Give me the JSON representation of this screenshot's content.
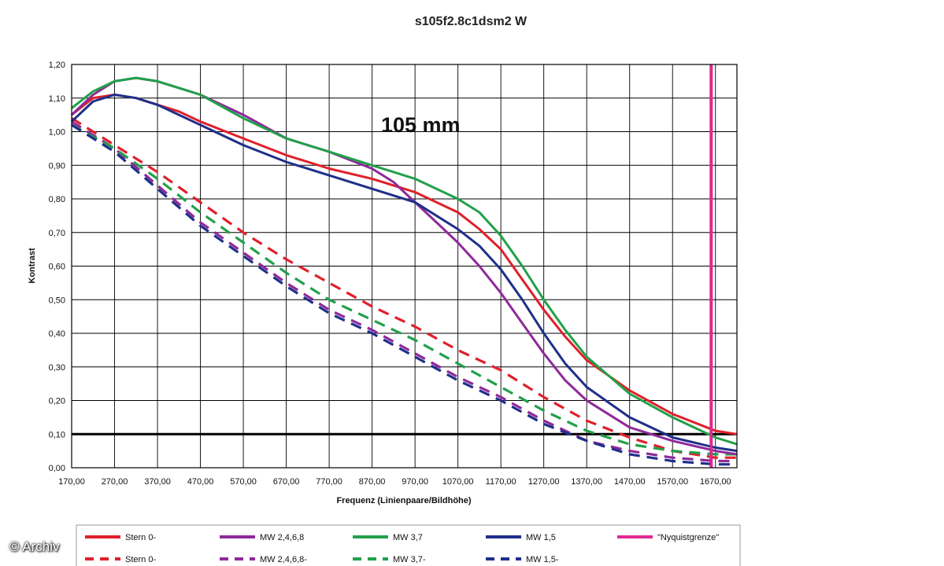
{
  "credit": "© Archiv",
  "chart_data": {
    "type": "line",
    "title": "s105f2.8c1dsm2 W",
    "annotation": "105 mm",
    "xlabel": "Frequenz (Linienpaare/Bildhöhe)",
    "ylabel": "Kontrast",
    "xlim": [
      170,
      1720
    ],
    "ylim": [
      0,
      1.2
    ],
    "x_ticks": [
      "170,00",
      "270,00",
      "370,00",
      "470,00",
      "570,00",
      "670,00",
      "770,00",
      "870,00",
      "970,00",
      "1070,00",
      "1170,00",
      "1270,00",
      "1370,00",
      "1470,00",
      "1570,00",
      "1670,00"
    ],
    "y_ticks": [
      "0,00",
      "0,10",
      "0,20",
      "0,30",
      "0,40",
      "0,50",
      "0,60",
      "0,70",
      "0,80",
      "0,90",
      "1,00",
      "1,10",
      "1,20"
    ],
    "grid": true,
    "legend_position": "bottom",
    "colors": {
      "red": "#e0202a",
      "purple": "#8e2a9a",
      "green": "#22a04a",
      "blue": "#1f2f8a",
      "magenta": "#e02890",
      "black": "#000000"
    },
    "reference_lines": [
      {
        "orientation": "horizontal",
        "y": 0.1,
        "color": "#000000"
      },
      {
        "orientation": "vertical",
        "x": 1660,
        "color": "#e02890"
      }
    ],
    "series": [
      {
        "name": "Stern 0-",
        "color": "#e0202a",
        "style": "solid",
        "x": [
          170,
          220,
          270,
          320,
          370,
          420,
          470,
          570,
          670,
          770,
          870,
          970,
          1070,
          1120,
          1170,
          1220,
          1270,
          1320,
          1370,
          1470,
          1570,
          1670,
          1720
        ],
        "y": [
          1.05,
          1.1,
          1.11,
          1.1,
          1.08,
          1.06,
          1.03,
          0.98,
          0.93,
          0.89,
          0.86,
          0.82,
          0.76,
          0.71,
          0.65,
          0.56,
          0.47,
          0.39,
          0.32,
          0.23,
          0.16,
          0.11,
          0.1
        ]
      },
      {
        "name": "MW 2,4,6,8",
        "color": "#8e2a9a",
        "style": "solid",
        "x": [
          170,
          220,
          270,
          320,
          370,
          420,
          470,
          570,
          670,
          770,
          870,
          920,
          970,
          1020,
          1070,
          1120,
          1170,
          1220,
          1270,
          1320,
          1370,
          1470,
          1570,
          1670,
          1720
        ],
        "y": [
          1.05,
          1.11,
          1.15,
          1.16,
          1.15,
          1.13,
          1.11,
          1.05,
          0.98,
          0.94,
          0.89,
          0.85,
          0.79,
          0.73,
          0.67,
          0.6,
          0.52,
          0.43,
          0.34,
          0.26,
          0.2,
          0.12,
          0.08,
          0.05,
          0.04
        ]
      },
      {
        "name": "MW 3,7",
        "color": "#22a04a",
        "style": "solid",
        "x": [
          170,
          220,
          270,
          320,
          370,
          420,
          470,
          570,
          670,
          770,
          870,
          970,
          1070,
          1120,
          1170,
          1220,
          1270,
          1320,
          1370,
          1470,
          1570,
          1670,
          1720
        ],
        "y": [
          1.07,
          1.12,
          1.15,
          1.16,
          1.15,
          1.13,
          1.11,
          1.04,
          0.98,
          0.94,
          0.9,
          0.86,
          0.8,
          0.76,
          0.69,
          0.6,
          0.5,
          0.41,
          0.33,
          0.22,
          0.15,
          0.09,
          0.07
        ]
      },
      {
        "name": "MW 1,5",
        "color": "#1f2f8a",
        "style": "solid",
        "x": [
          170,
          220,
          270,
          320,
          370,
          420,
          470,
          570,
          670,
          770,
          870,
          970,
          1070,
          1120,
          1170,
          1220,
          1270,
          1320,
          1370,
          1470,
          1570,
          1670,
          1720
        ],
        "y": [
          1.03,
          1.09,
          1.11,
          1.1,
          1.08,
          1.05,
          1.02,
          0.96,
          0.91,
          0.87,
          0.83,
          0.79,
          0.71,
          0.66,
          0.59,
          0.5,
          0.4,
          0.31,
          0.24,
          0.15,
          0.09,
          0.06,
          0.05
        ]
      },
      {
        "name": "\"Nyquistgrenze\"",
        "color": "#e02890",
        "style": "solid",
        "x": [
          1660,
          1660
        ],
        "y": [
          0,
          1.2
        ]
      },
      {
        "name": "Stern 0-",
        "color": "#e0202a",
        "style": "dashed",
        "x": [
          170,
          270,
          370,
          470,
          570,
          670,
          770,
          870,
          970,
          1070,
          1170,
          1270,
          1370,
          1470,
          1570,
          1670,
          1720
        ],
        "y": [
          1.04,
          0.96,
          0.88,
          0.79,
          0.7,
          0.62,
          0.55,
          0.48,
          0.42,
          0.35,
          0.29,
          0.21,
          0.14,
          0.09,
          0.05,
          0.03,
          0.03
        ]
      },
      {
        "name": "MW 2,4,6,8-",
        "color": "#8e2a9a",
        "style": "dashed",
        "x": [
          170,
          270,
          370,
          470,
          570,
          670,
          770,
          870,
          970,
          1070,
          1170,
          1270,
          1370,
          1470,
          1570,
          1670,
          1720
        ],
        "y": [
          1.03,
          0.95,
          0.84,
          0.73,
          0.64,
          0.55,
          0.47,
          0.41,
          0.34,
          0.27,
          0.21,
          0.14,
          0.08,
          0.05,
          0.03,
          0.02,
          0.02
        ]
      },
      {
        "name": "MW 3,7-",
        "color": "#22a04a",
        "style": "dashed",
        "x": [
          170,
          270,
          370,
          470,
          570,
          670,
          770,
          870,
          970,
          1070,
          1170,
          1270,
          1370,
          1470,
          1570,
          1670,
          1720
        ],
        "y": [
          1.02,
          0.95,
          0.86,
          0.76,
          0.67,
          0.58,
          0.5,
          0.44,
          0.38,
          0.31,
          0.24,
          0.17,
          0.11,
          0.07,
          0.05,
          0.04,
          0.04
        ]
      },
      {
        "name": "MW 1,5-",
        "color": "#1f2f8a",
        "style": "dashed",
        "x": [
          170,
          270,
          370,
          470,
          570,
          670,
          770,
          870,
          970,
          1070,
          1170,
          1270,
          1370,
          1470,
          1570,
          1670,
          1720
        ],
        "y": [
          1.02,
          0.94,
          0.83,
          0.72,
          0.63,
          0.54,
          0.46,
          0.4,
          0.33,
          0.26,
          0.2,
          0.13,
          0.08,
          0.04,
          0.02,
          0.01,
          0.01
        ]
      }
    ],
    "legend": {
      "rows": [
        [
          {
            "label": "Stern 0-",
            "color": "#e0202a",
            "style": "solid"
          },
          {
            "label": "MW 2,4,6,8",
            "color": "#8e2a9a",
            "style": "solid"
          },
          {
            "label": "MW 3,7",
            "color": "#22a04a",
            "style": "solid"
          },
          {
            "label": "MW 1,5",
            "color": "#1f2f8a",
            "style": "solid"
          },
          {
            "label": "\"Nyquistgrenze\"",
            "color": "#e02890",
            "style": "solid"
          }
        ],
        [
          {
            "label": "Stern 0-",
            "color": "#e0202a",
            "style": "dashed"
          },
          {
            "label": "MW 2,4,6,8-",
            "color": "#8e2a9a",
            "style": "dashed"
          },
          {
            "label": "MW 3,7-",
            "color": "#22a04a",
            "style": "dashed"
          },
          {
            "label": "MW 1,5-",
            "color": "#1f2f8a",
            "style": "dashed"
          }
        ]
      ]
    }
  }
}
